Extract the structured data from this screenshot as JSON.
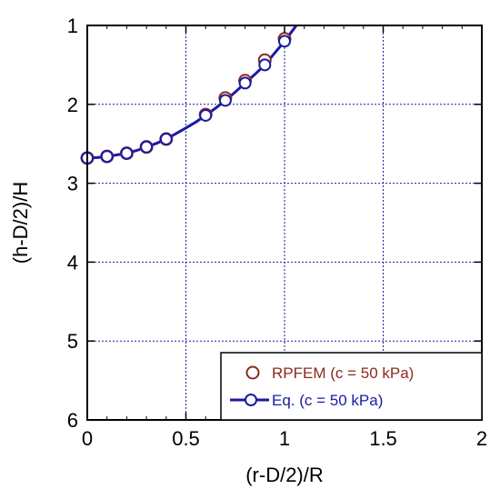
{
  "chart_data": {
    "type": "scatter",
    "xlabel": "(r-D/2)/R",
    "ylabel": "(h-D/2)/H",
    "xlim": [
      0,
      2
    ],
    "ylim": [
      1,
      6
    ],
    "y_axis_inverted": true,
    "grid": true,
    "x_ticks": [
      "0",
      "0.5",
      "1",
      "1.5",
      "2"
    ],
    "y_ticks": [
      "1",
      "2",
      "3",
      "4",
      "5",
      "6"
    ],
    "legend_position": "bottom-right",
    "colors": {
      "rpfem": "#8b2a1f",
      "eq": "#1a1aa6",
      "grid": "#1a1aa6",
      "axes": "#000000"
    },
    "series": [
      {
        "name": "RPFEM (c = 50 kPa)",
        "marker": "hollow-circle",
        "x": [
          0,
          0.1,
          0.2,
          0.3,
          0.4,
          0.6,
          0.7,
          0.8,
          0.9,
          1.0
        ],
        "y": [
          2.68,
          2.66,
          2.62,
          2.54,
          2.44,
          2.13,
          1.92,
          1.7,
          1.44,
          1.17
        ]
      },
      {
        "name": "Eq. (c = 50 kPa)",
        "marker": "hollow-circle-line",
        "x": [
          0,
          0.1,
          0.2,
          0.3,
          0.4,
          0.6,
          0.7,
          0.8,
          0.9,
          1.0
        ],
        "y": [
          2.68,
          2.66,
          2.62,
          2.54,
          2.44,
          2.14,
          1.95,
          1.73,
          1.5,
          1.2
        ]
      }
    ],
    "curve": {
      "x": [
        0,
        0.05,
        0.1,
        0.15,
        0.2,
        0.25,
        0.3,
        0.35,
        0.4,
        0.45,
        0.5,
        0.55,
        0.6,
        0.65,
        0.7,
        0.75,
        0.8,
        0.85,
        0.9,
        0.95,
        1.0,
        1.03,
        1.06
      ],
      "y": [
        2.68,
        2.675,
        2.66,
        2.64,
        2.62,
        2.585,
        2.54,
        2.495,
        2.44,
        2.37,
        2.3,
        2.225,
        2.14,
        2.05,
        1.95,
        1.845,
        1.73,
        1.62,
        1.5,
        1.35,
        1.2,
        1.1,
        1.0
      ]
    }
  }
}
